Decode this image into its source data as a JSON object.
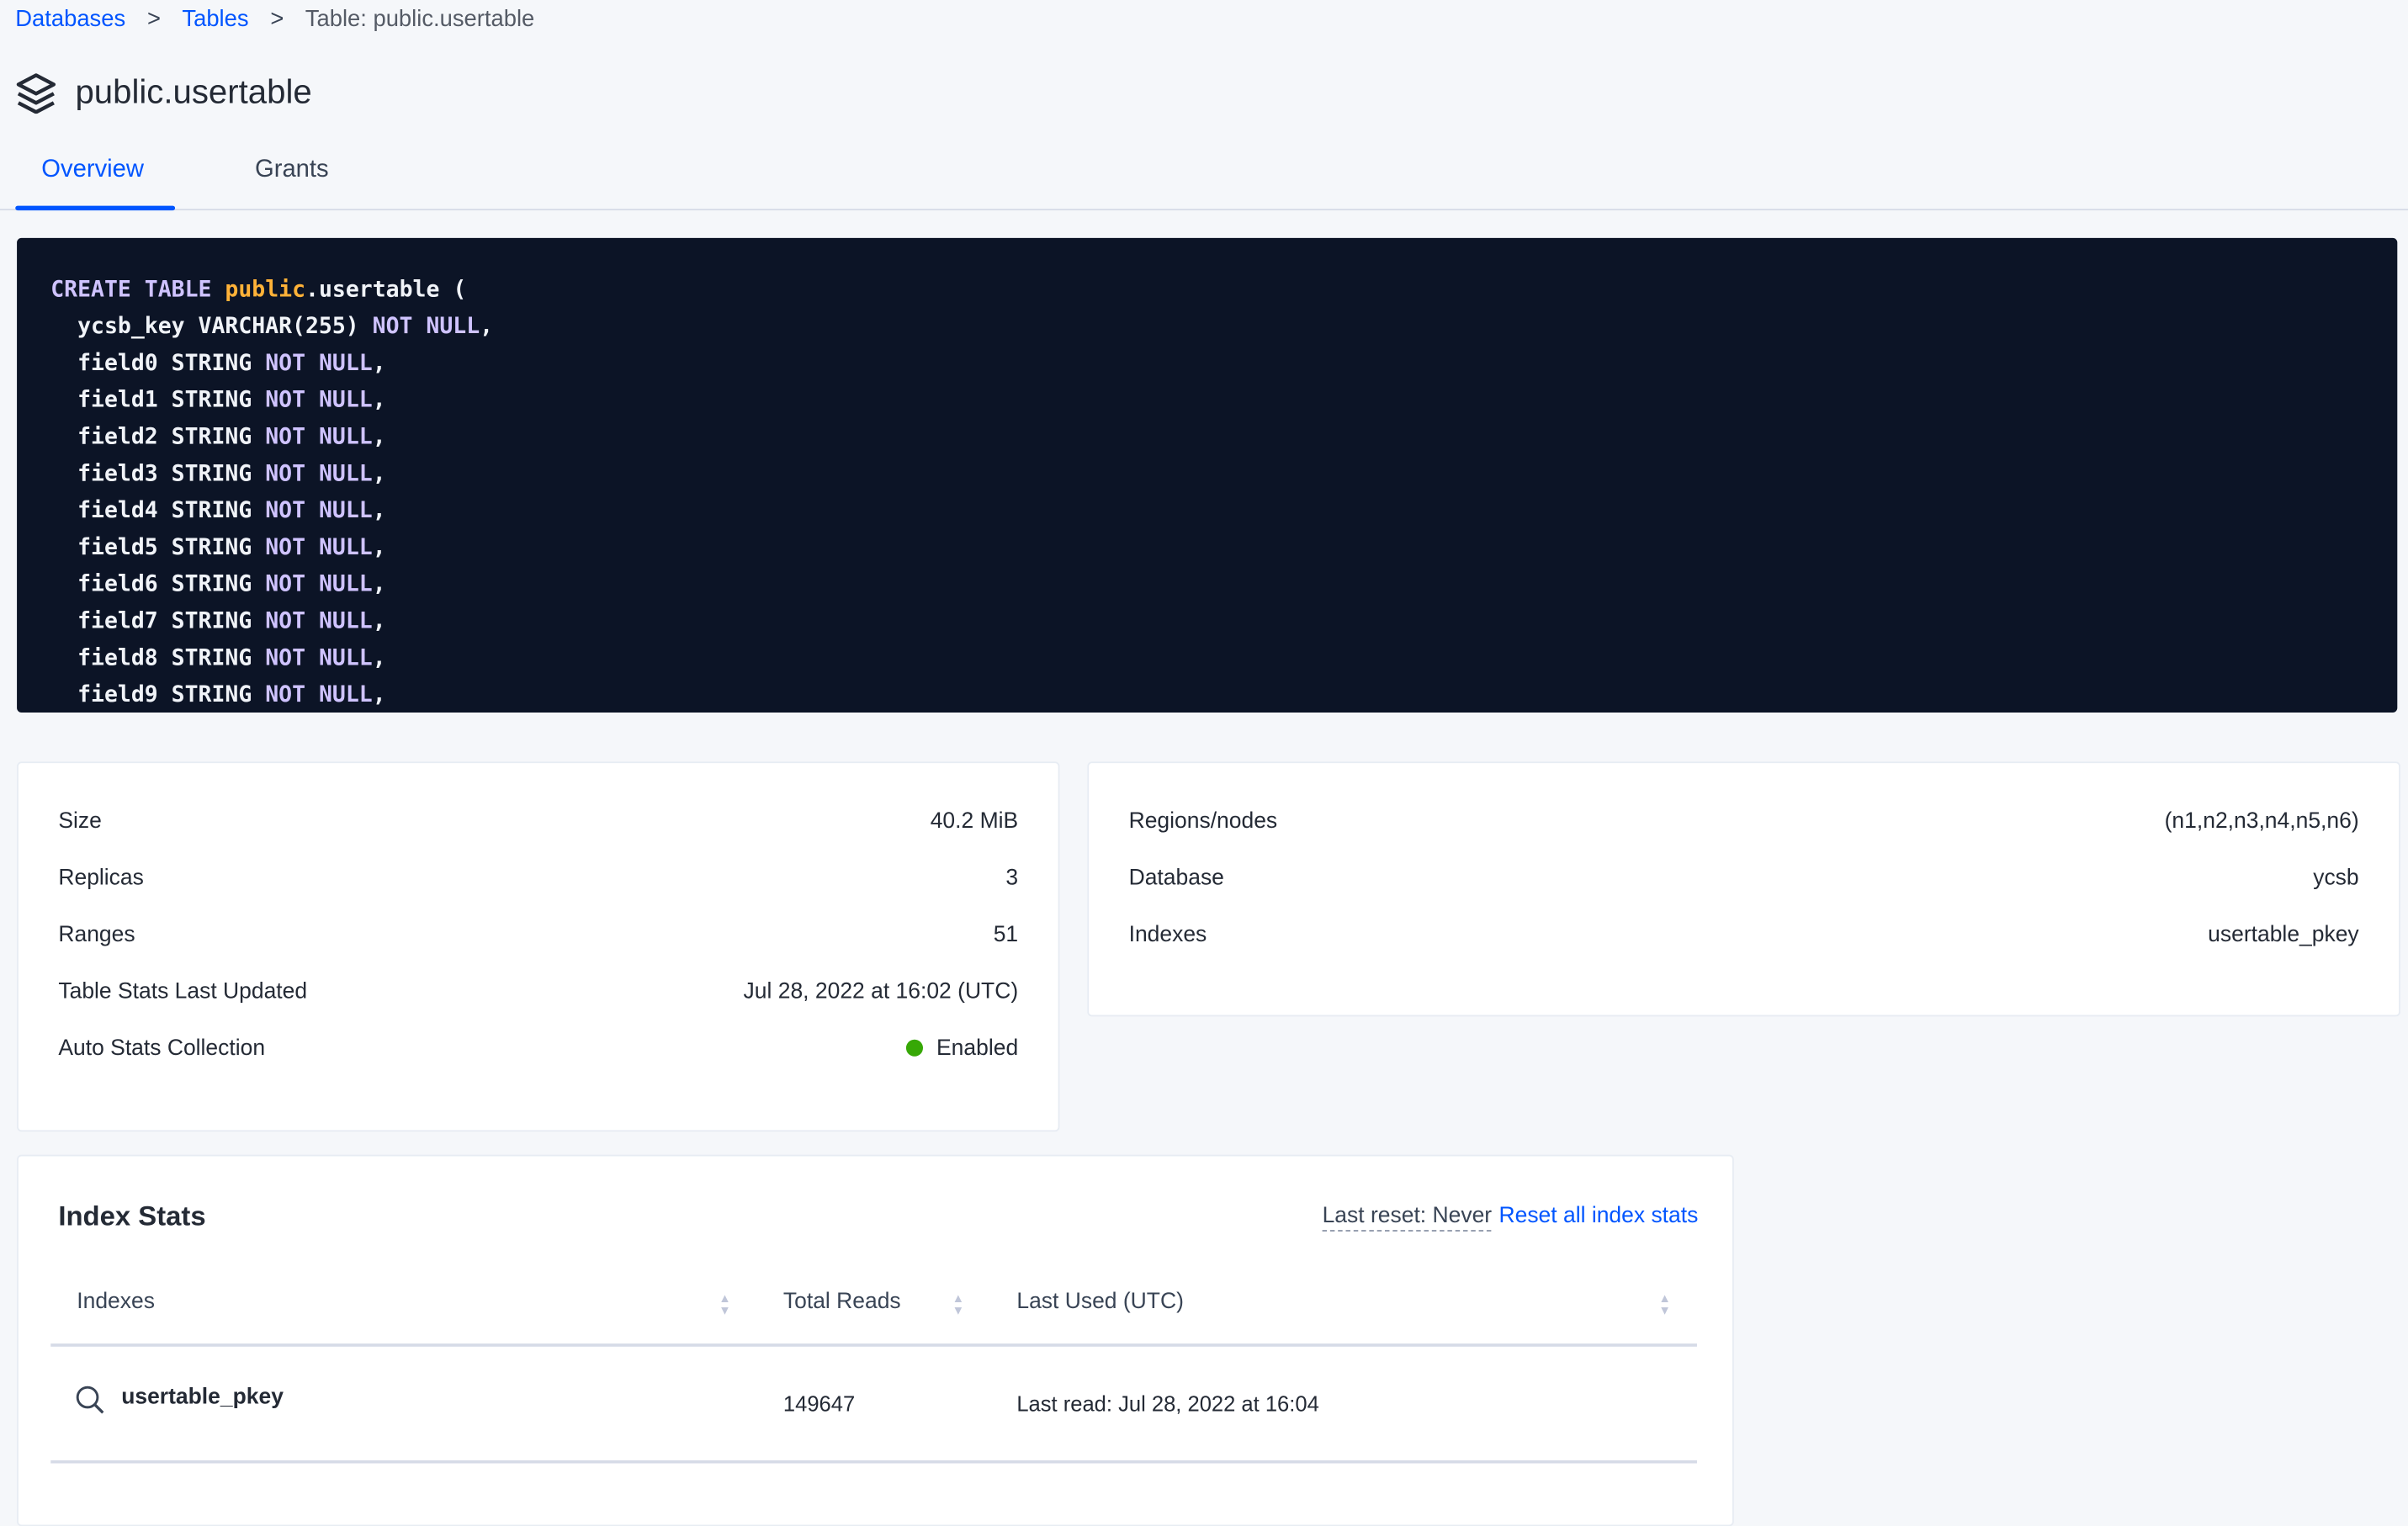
{
  "breadcrumb": {
    "items": [
      {
        "label": "Databases"
      },
      {
        "label": "Tables"
      }
    ],
    "current": "Table: public.usertable",
    "separator": ">"
  },
  "header": {
    "title": "public.usertable",
    "icon": "stack-layers-icon"
  },
  "tabs": [
    {
      "label": "Overview",
      "active": true
    },
    {
      "label": "Grants",
      "active": false
    }
  ],
  "ddl": {
    "lines": [
      [
        [
          "kw",
          "CREATE TABLE "
        ],
        [
          "pub",
          "public"
        ],
        [
          "t",
          ".usertable ("
        ]
      ],
      [
        [
          "t",
          "  ycsb_key VARCHAR(255) "
        ],
        [
          "kw",
          "NOT NULL"
        ],
        [
          "t",
          ","
        ]
      ],
      [
        [
          "t",
          "  field0 STRING "
        ],
        [
          "kw",
          "NOT NULL"
        ],
        [
          "t",
          ","
        ]
      ],
      [
        [
          "t",
          "  field1 STRING "
        ],
        [
          "kw",
          "NOT NULL"
        ],
        [
          "t",
          ","
        ]
      ],
      [
        [
          "t",
          "  field2 STRING "
        ],
        [
          "kw",
          "NOT NULL"
        ],
        [
          "t",
          ","
        ]
      ],
      [
        [
          "t",
          "  field3 STRING "
        ],
        [
          "kw",
          "NOT NULL"
        ],
        [
          "t",
          ","
        ]
      ],
      [
        [
          "t",
          "  field4 STRING "
        ],
        [
          "kw",
          "NOT NULL"
        ],
        [
          "t",
          ","
        ]
      ],
      [
        [
          "t",
          "  field5 STRING "
        ],
        [
          "kw",
          "NOT NULL"
        ],
        [
          "t",
          ","
        ]
      ],
      [
        [
          "t",
          "  field6 STRING "
        ],
        [
          "kw",
          "NOT NULL"
        ],
        [
          "t",
          ","
        ]
      ],
      [
        [
          "t",
          "  field7 STRING "
        ],
        [
          "kw",
          "NOT NULL"
        ],
        [
          "t",
          ","
        ]
      ],
      [
        [
          "t",
          "  field8 STRING "
        ],
        [
          "kw",
          "NOT NULL"
        ],
        [
          "t",
          ","
        ]
      ],
      [
        [
          "t",
          "  field9 STRING "
        ],
        [
          "kw",
          "NOT NULL"
        ],
        [
          "t",
          ","
        ]
      ]
    ]
  },
  "summary": [
    {
      "label": "Size",
      "value": "40.2 MiB"
    },
    {
      "label": "Replicas",
      "value": "3"
    },
    {
      "label": "Ranges",
      "value": "51"
    },
    {
      "label": "Table Stats Last Updated",
      "value": "Jul 28, 2022 at 16:02 (UTC)"
    },
    {
      "label": "Auto Stats Collection",
      "value": "Enabled",
      "status_color": "#37a806"
    }
  ],
  "details": [
    {
      "label": "Regions/nodes",
      "value": "(n1,n2,n3,n4,n5,n6)"
    },
    {
      "label": "Database",
      "value": "ycsb"
    },
    {
      "label": "Indexes",
      "value": "usertable_pkey"
    }
  ],
  "index_stats": {
    "title": "Index Stats",
    "last_reset": "Last reset: Never",
    "reset_label": "Reset all index stats",
    "columns": [
      "Indexes",
      "Total Reads",
      "Last Used (UTC)"
    ],
    "rows": [
      {
        "index": "usertable_pkey",
        "total_reads": "149647",
        "last_used": "Last read: Jul 28, 2022 at 16:04"
      }
    ]
  },
  "colors": {
    "accent": "#0055ff",
    "code_bg": "#0c1426",
    "keyword": "#cfc3ff",
    "schema": "#ffb238"
  }
}
